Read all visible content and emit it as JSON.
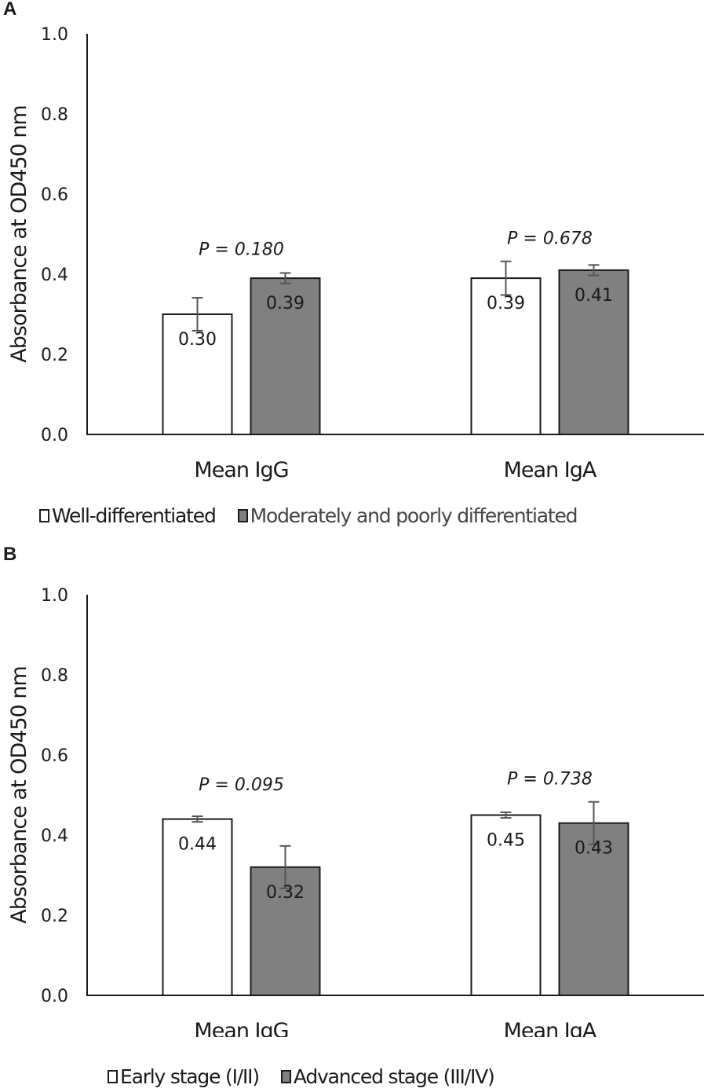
{
  "chart_data": [
    {
      "panel_label": "A",
      "type": "bar",
      "ylabel": "Absorbance at OD450 nm",
      "xlabel": "",
      "ylim": [
        0.0,
        1.0
      ],
      "yticks": [
        "0.0",
        "0.2",
        "0.4",
        "0.6",
        "0.8",
        "1.0"
      ],
      "grid": false,
      "categories": [
        "Mean IgG",
        "Mean IgA"
      ],
      "series": [
        {
          "name": "Well-differentiated",
          "color": "#ffffff",
          "values": [
            0.3,
            0.39
          ],
          "labels": [
            "0.30",
            "0.39"
          ],
          "errors": [
            0.041,
            0.042
          ]
        },
        {
          "name": "Moderately and poorly differentiated",
          "color": "#808080",
          "values": [
            0.39,
            0.41
          ],
          "labels": [
            "0.39",
            "0.41"
          ],
          "errors": [
            0.013,
            0.013
          ]
        }
      ],
      "annotations": [
        "P = 0.180",
        "P = 0.678"
      ],
      "legend_position": "bottom"
    },
    {
      "panel_label": "B",
      "type": "bar",
      "ylabel": "Absorbance at OD450 nm",
      "xlabel": "",
      "ylim": [
        0.0,
        1.0
      ],
      "yticks": [
        "0.0",
        "0.2",
        "0.4",
        "0.6",
        "0.8",
        "1.0"
      ],
      "grid": false,
      "categories": [
        "Mean IgG",
        "Mean IgA"
      ],
      "series": [
        {
          "name": "Early stage (I/II)",
          "color": "#ffffff",
          "values": [
            0.44,
            0.45
          ],
          "labels": [
            "0.44",
            "0.45"
          ],
          "errors": [
            0.007,
            0.007
          ]
        },
        {
          "name": "Advanced stage (III/IV)",
          "color": "#808080",
          "values": [
            0.32,
            0.43
          ],
          "labels": [
            "0.32",
            "0.43"
          ],
          "errors": [
            0.053,
            0.053
          ]
        }
      ],
      "annotations": [
        "P = 0.095",
        "P = 0.738"
      ],
      "legend_position": "bottom"
    }
  ]
}
